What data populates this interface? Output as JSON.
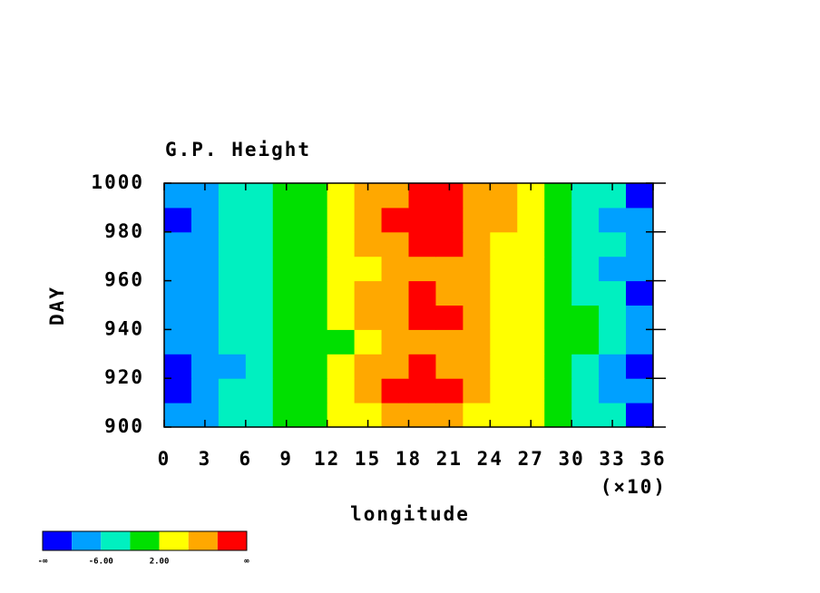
{
  "chart_data": {
    "type": "heatmap",
    "title": "G.P. Height",
    "xlabel": "longitude",
    "ylabel": "DAY",
    "x_multiplier": "(×10)",
    "x": [
      1,
      3,
      5,
      7,
      9,
      11,
      13,
      15,
      17,
      19,
      21,
      23,
      25,
      27,
      29,
      31,
      33,
      35
    ],
    "y": [
      905,
      915,
      925,
      935,
      945,
      955,
      965,
      975,
      985,
      995
    ],
    "z": [
      [
        -8,
        -8,
        -6,
        -4,
        -2,
        0,
        2,
        5,
        7,
        7,
        6,
        5,
        3,
        2,
        0,
        -3,
        -6,
        -11
      ],
      [
        -11,
        -8,
        -6,
        -4,
        -1,
        0,
        3,
        8,
        11,
        11,
        10,
        7,
        5,
        3,
        0,
        -3,
        -7,
        -10
      ],
      [
        -11,
        -9,
        -7,
        -4,
        -1,
        0,
        2,
        7,
        9,
        10,
        9,
        7,
        5,
        2,
        0,
        -3,
        -7,
        -11
      ],
      [
        -9,
        -8,
        -6,
        -4,
        -1,
        0,
        1,
        5,
        8,
        8,
        8,
        6,
        4,
        2,
        0,
        -2,
        -6,
        -9
      ],
      [
        -8,
        -7,
        -6,
        -4,
        -2,
        0,
        2,
        6,
        9,
        11,
        10,
        7,
        5,
        3,
        1,
        -2,
        -6,
        -9
      ],
      [
        -9,
        -8,
        -6,
        -4,
        -2,
        -1,
        2,
        6,
        9,
        11,
        9,
        7,
        5,
        2,
        0,
        -3,
        -6,
        -11
      ],
      [
        -8,
        -7,
        -6,
        -4,
        -2,
        0,
        2,
        5,
        7,
        8,
        7,
        6,
        4,
        2,
        0,
        -3,
        -7,
        -10
      ],
      [
        -8,
        -7,
        -5,
        -4,
        -2,
        0,
        3,
        6,
        9,
        10,
        10,
        8,
        5,
        3,
        0,
        -3,
        -6,
        -9
      ],
      [
        -11,
        -8,
        -6,
        -4,
        -2,
        0,
        3,
        6,
        10,
        11,
        12,
        9,
        6,
        3,
        1,
        -3,
        -7,
        -9
      ],
      [
        -9,
        -8,
        -6,
        -3,
        -1,
        1,
        3,
        6,
        9,
        12,
        11,
        8,
        6,
        3,
        0,
        -3,
        -6,
        -11
      ]
    ],
    "xlim": [
      0,
      36
    ],
    "xticks": [
      0,
      3,
      6,
      9,
      12,
      15,
      18,
      21,
      24,
      27,
      30,
      33,
      36
    ],
    "ylim": [
      900,
      1000
    ],
    "yticks": [
      900,
      920,
      940,
      960,
      980,
      1000
    ],
    "colorbar": {
      "colors": [
        "#0000ff",
        "#00a0ff",
        "#00f0c0",
        "#00e000",
        "#ffff00",
        "#ffa800",
        "#ff0000"
      ],
      "levels": [
        -10,
        -6,
        -2,
        2,
        6,
        10
      ],
      "ticks": [
        {
          "value": -6,
          "label": "-6.00"
        },
        {
          "value": 2,
          "label": "2.00"
        }
      ],
      "low_label": "-∞",
      "high_label": "∞"
    }
  }
}
